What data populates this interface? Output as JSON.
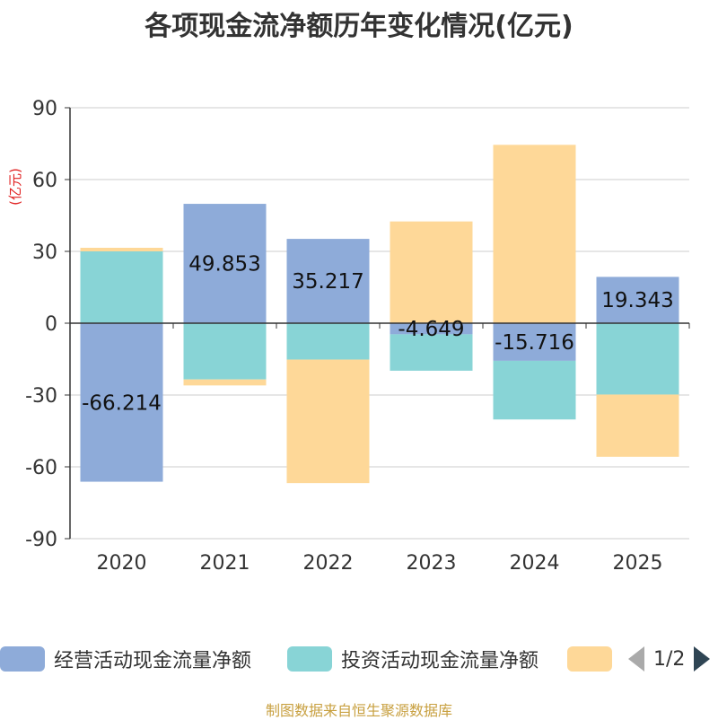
{
  "chart_data": {
    "type": "bar",
    "stacked": true,
    "title": "各项现金流净额历年变化情况(亿元)",
    "ylabel": "(亿元)",
    "categories": [
      "2020",
      "2021",
      "2022",
      "2023",
      "2024",
      "2025"
    ],
    "ylim": [
      -90,
      90
    ],
    "yticks": [
      90,
      60,
      30,
      0,
      -30,
      -60,
      -90
    ],
    "grid": true,
    "series": [
      {
        "name": "经营活动现金流量净额",
        "color": "#8eabd9",
        "values": [
          -66.214,
          49.853,
          35.217,
          -4.649,
          -15.716,
          19.343
        ],
        "labels": [
          "-66.214",
          "49.853",
          "35.217",
          "-4.649",
          "-15.716",
          "19.343"
        ]
      },
      {
        "name": "投资活动现金流量净额",
        "color": "#88d4d6",
        "values": [
          30,
          -23.5,
          -15.2,
          -15.2,
          -24.5,
          -29.8
        ]
      },
      {
        "name": "",
        "color": "#fed898",
        "values": [
          1.5,
          -2.5,
          -51.6,
          42.5,
          74.5,
          -26
        ]
      }
    ],
    "legend_placement": "bottom",
    "legend_page": "1/2"
  },
  "source": "制图数据来自恒生聚源数据库"
}
